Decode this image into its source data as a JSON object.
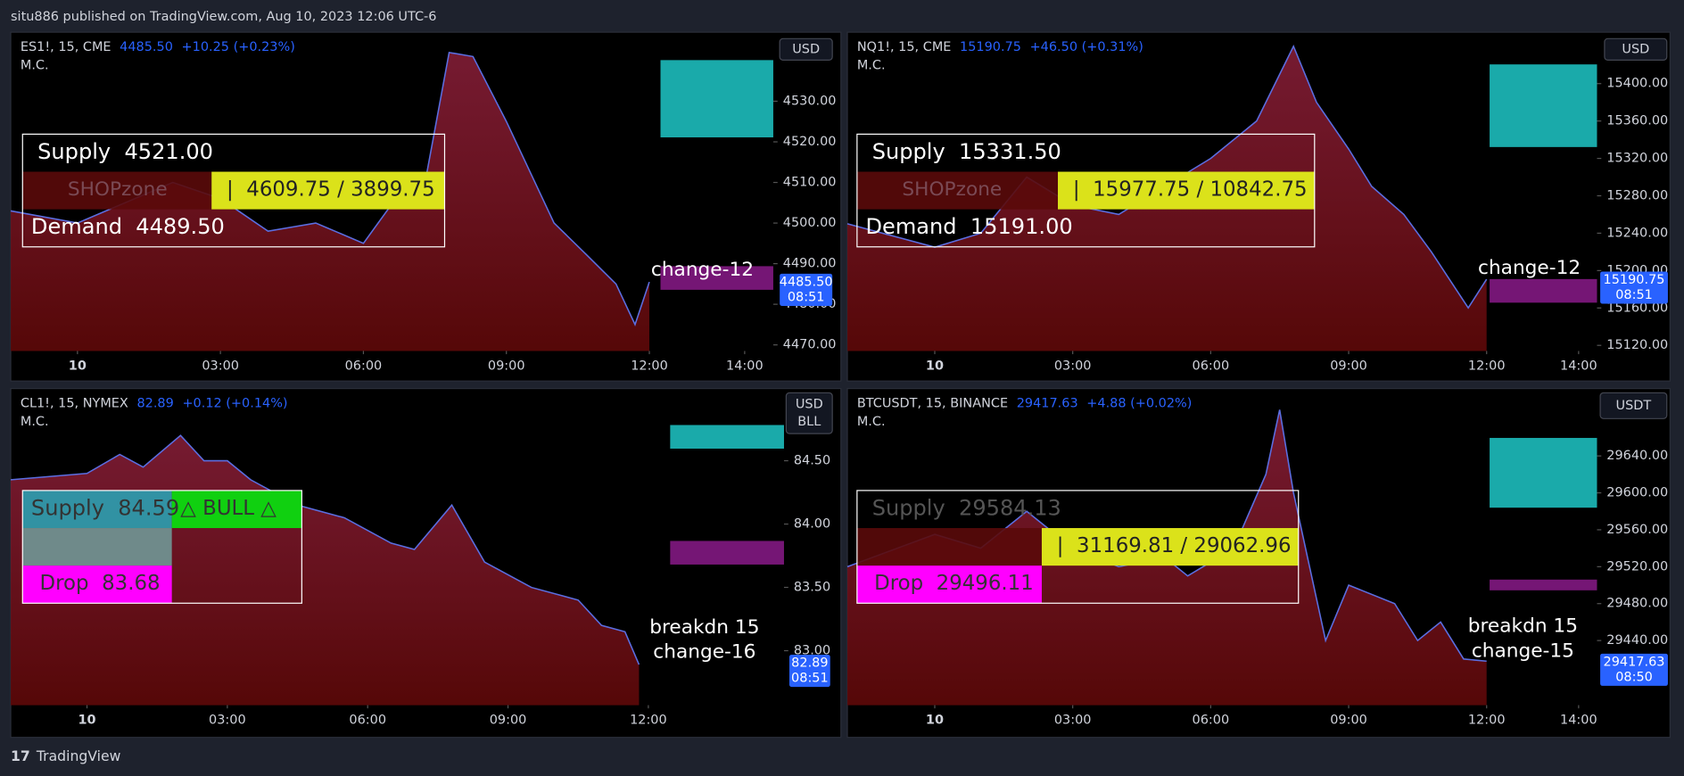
{
  "header": "situ886 published on TradingView.com, Aug 10, 2023 12:06 UTC-6",
  "footer": "TradingView",
  "chart_data": [
    {
      "type": "area",
      "symbol": "ES1!, 15, CME",
      "price": "4485.50",
      "change": "+10.25 (+0.23%)",
      "indicator": "M.C.",
      "currency": "USD",
      "supply": "Supply  4521.00",
      "zone": "SHOPzone",
      "range": "|  4609.75 / 3899.75",
      "demand": "Demand  4489.50",
      "notes": [
        "change-12"
      ],
      "last_price": "4485.50",
      "countdown": "08:51",
      "xlim": [
        -1.4,
        14.6
      ],
      "xticks": [
        {
          "value": 0,
          "label": "10"
        },
        {
          "value": 3,
          "label": "03:00"
        },
        {
          "value": 6,
          "label": "06:00"
        },
        {
          "value": 9,
          "label": "09:00"
        },
        {
          "value": 12,
          "label": "12:00"
        },
        {
          "value": 14,
          "label": "14:00"
        }
      ],
      "ylim": [
        4468.5,
        4547
      ],
      "yticks": [
        {
          "value": 4470,
          "label": "4470.00"
        },
        {
          "value": 4480,
          "label": "4480.00"
        },
        {
          "value": 4490,
          "label": "4490.00"
        },
        {
          "value": 4500,
          "label": "4500.00"
        },
        {
          "value": 4510,
          "label": "4510.00"
        },
        {
          "value": 4520,
          "label": "4520.00"
        },
        {
          "value": 4530,
          "label": "4530.00"
        }
      ],
      "series": [
        {
          "color": "#5b6ee1",
          "x": [
            -1.4,
            0,
            1,
            2,
            3,
            4,
            5,
            6,
            6.8,
            7.2,
            7.8,
            8.3,
            9,
            10,
            10.7,
            11.3,
            11.7,
            12
          ],
          "values": [
            4503,
            4500,
            4505,
            4510,
            4506,
            4498,
            4500,
            4495,
            4508,
            4504,
            4542,
            4541,
            4525,
            4500,
            4492,
            4485,
            4475,
            4485.5
          ]
        }
      ]
    },
    {
      "type": "area",
      "symbol": "NQ1!, 15, CME",
      "price": "15190.75",
      "change": "+46.50 (+0.31%)",
      "indicator": "M.C.",
      "currency": "USD",
      "supply": "Supply  15331.50",
      "zone": "SHOPzone",
      "range": "|  15977.75 / 10842.75",
      "demand": "Demand  15191.00",
      "notes": [
        "change-12"
      ],
      "last_price": "15190.75",
      "countdown": "08:51",
      "xlim": [
        -1.9,
        14.4
      ],
      "xticks": [
        {
          "value": 0,
          "label": "10"
        },
        {
          "value": 3,
          "label": "03:00"
        },
        {
          "value": 6,
          "label": "06:00"
        },
        {
          "value": 9,
          "label": "09:00"
        },
        {
          "value": 12,
          "label": "12:00"
        },
        {
          "value": 14,
          "label": "14:00"
        }
      ],
      "ylim": [
        15114,
        15455
      ],
      "yticks": [
        {
          "value": 15120,
          "label": "15120.00"
        },
        {
          "value": 15160,
          "label": "15160.00"
        },
        {
          "value": 15200,
          "label": "15200.00"
        },
        {
          "value": 15240,
          "label": "15240.00"
        },
        {
          "value": 15280,
          "label": "15280.00"
        },
        {
          "value": 15320,
          "label": "15320.00"
        },
        {
          "value": 15360,
          "label": "15360.00"
        },
        {
          "value": 15400,
          "label": "15400.00"
        }
      ],
      "series": [
        {
          "color": "#5b6ee1",
          "x": [
            -1.9,
            0,
            1,
            2,
            3,
            4,
            5,
            6,
            7,
            7.8,
            8.3,
            9,
            9.5,
            10.2,
            10.8,
            11.6,
            12
          ],
          "values": [
            15250,
            15225,
            15240,
            15300,
            15270,
            15260,
            15290,
            15320,
            15360,
            15440,
            15380,
            15330,
            15290,
            15260,
            15220,
            15160,
            15190.75
          ]
        }
      ]
    },
    {
      "type": "area",
      "symbol": "CL1!, 15, NYMEX",
      "price": "82.89",
      "change": "+0.12 (+0.14%)",
      "indicator": "M.C.",
      "currency": "USD",
      "currency_unit": "BLL",
      "supply": "Supply  84.59",
      "signal": "△ BULL △",
      "drop": "Drop  83.68",
      "notes": [
        "breakdn 15",
        "change-16"
      ],
      "last_price": "82.89",
      "countdown": "08:51",
      "xlim": [
        -1.63,
        14.9
      ],
      "xticks": [
        {
          "value": 0,
          "label": "10"
        },
        {
          "value": 3,
          "label": "03:00"
        },
        {
          "value": 6,
          "label": "06:00"
        },
        {
          "value": 9,
          "label": "09:00"
        },
        {
          "value": 12,
          "label": "12:00"
        }
      ],
      "ylim": [
        82.57,
        85.07
      ],
      "yticks": [
        {
          "value": 83,
          "label": "83.00"
        },
        {
          "value": 83.5,
          "label": "83.50"
        },
        {
          "value": 84,
          "label": "84.00"
        },
        {
          "value": 84.5,
          "label": "84.50"
        }
      ],
      "series": [
        {
          "color": "#5b6ee1",
          "x": [
            -1.63,
            0,
            0.7,
            1.2,
            2,
            2.5,
            3,
            3.5,
            4.5,
            5.5,
            6.5,
            7,
            7.8,
            8.5,
            9.5,
            10.5,
            11,
            11.5,
            11.8
          ],
          "values": [
            84.35,
            84.4,
            84.55,
            84.45,
            84.7,
            84.5,
            84.5,
            84.35,
            84.15,
            84.05,
            83.85,
            83.8,
            84.15,
            83.7,
            83.5,
            83.4,
            83.2,
            83.15,
            82.89
          ]
        }
      ]
    },
    {
      "type": "area",
      "symbol": "BTCUSDT, 15, BINANCE",
      "price": "29417.63",
      "change": "+4.88 (+0.02%)",
      "indicator": "M.C.",
      "currency": "USDT",
      "supply": "Supply  29584.13",
      "range": "|  31169.81 / 29062.96",
      "drop": "Drop  29496.11",
      "notes": [
        "breakdn 15",
        "change-15"
      ],
      "last_price": "29417.63",
      "countdown": "08:50",
      "xlim": [
        -1.9,
        14.4
      ],
      "xticks": [
        {
          "value": 0,
          "label": "10"
        },
        {
          "value": 3,
          "label": "03:00"
        },
        {
          "value": 6,
          "label": "06:00"
        },
        {
          "value": 9,
          "label": "09:00"
        },
        {
          "value": 12,
          "label": "12:00"
        },
        {
          "value": 14,
          "label": "14:00"
        }
      ],
      "ylim": [
        29370,
        29713
      ],
      "yticks": [
        {
          "value": 29440,
          "label": "29440.00"
        },
        {
          "value": 29480,
          "label": "29480.00"
        },
        {
          "value": 29520,
          "label": "29520.00"
        },
        {
          "value": 29560,
          "label": "29560.00"
        },
        {
          "value": 29600,
          "label": "29600.00"
        },
        {
          "value": 29640,
          "label": "29640.00"
        }
      ],
      "series": [
        {
          "color": "#5b6ee1",
          "x": [
            -1.9,
            0,
            1,
            2,
            3,
            4,
            5,
            5.5,
            6.5,
            7.2,
            7.5,
            7.8,
            8.5,
            9,
            10,
            10.5,
            11,
            11.5,
            12
          ],
          "values": [
            29520,
            29555,
            29540,
            29580,
            29540,
            29520,
            29530,
            29510,
            29540,
            29620,
            29690,
            29600,
            29440,
            29500,
            29480,
            29440,
            29460,
            29420,
            29417.63
          ]
        }
      ]
    }
  ]
}
